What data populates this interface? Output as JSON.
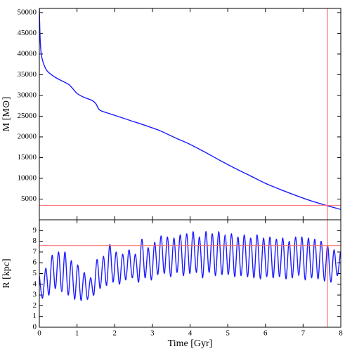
{
  "chart_data": [
    {
      "type": "line",
      "ylabel": "M [M⊙]",
      "x": [
        0,
        0.02,
        0.05,
        0.1,
        0.2,
        0.4,
        0.6,
        0.8,
        1.0,
        1.2,
        1.4,
        1.5,
        1.6,
        1.8,
        2.0,
        2.4,
        2.8,
        3.2,
        3.6,
        4.0,
        4.4,
        4.8,
        5.2,
        5.6,
        6.0,
        6.4,
        6.8,
        7.2,
        7.6,
        8.0
      ],
      "series": [
        {
          "color": "#1a1aff",
          "values": [
            51000,
            44000,
            40000,
            38000,
            36000,
            34500,
            33500,
            32500,
            30500,
            29500,
            28800,
            28000,
            26500,
            25800,
            25200,
            24000,
            22800,
            21500,
            19800,
            18200,
            16300,
            14300,
            12400,
            10600,
            8800,
            7300,
            5900,
            4600,
            3500,
            2500
          ]
        }
      ],
      "xlim": [
        0,
        8
      ],
      "ylim": [
        0,
        51000
      ],
      "yticks": [
        5000,
        10000,
        15000,
        20000,
        25000,
        30000,
        35000,
        40000,
        45000,
        50000
      ],
      "vline": 7.65,
      "hline": 3500,
      "ref_color": "#ff6666"
    },
    {
      "type": "line",
      "ylabel": "R [kpc]",
      "xlabel": "Time [Gyr]",
      "x": [
        0,
        0.085,
        0.17,
        0.255,
        0.34,
        0.425,
        0.51,
        0.595,
        0.68,
        0.765,
        0.85,
        0.935,
        1.02,
        1.105,
        1.19,
        1.275,
        1.36,
        1.445,
        1.53,
        1.615,
        1.7,
        1.785,
        1.87,
        1.955,
        2.04,
        2.125,
        2.21,
        2.295,
        2.38,
        2.465,
        2.55,
        2.635,
        2.72,
        2.805,
        2.89,
        2.975,
        3.06,
        3.145,
        3.23,
        3.315,
        3.4,
        3.485,
        3.57,
        3.655,
        3.74,
        3.825,
        3.91,
        3.995,
        4.08,
        4.165,
        4.25,
        4.335,
        4.42,
        4.505,
        4.59,
        4.675,
        4.76,
        4.845,
        4.93,
        5.015,
        5.1,
        5.185,
        5.27,
        5.355,
        5.44,
        5.525,
        5.61,
        5.695,
        5.78,
        5.865,
        5.95,
        6.035,
        6.12,
        6.205,
        6.29,
        6.375,
        6.46,
        6.545,
        6.63,
        6.715,
        6.8,
        6.885,
        6.97,
        7.055,
        7.14,
        7.225,
        7.31,
        7.395,
        7.48,
        7.565,
        7.65,
        7.735,
        7.82,
        7.905,
        7.99
      ],
      "series": [
        {
          "color": "#1a1aff",
          "values": [
            4.8,
            2.7,
            5.5,
            3.0,
            6.7,
            3.6,
            7.0,
            3.3,
            7.0,
            3.0,
            6.2,
            2.6,
            5.8,
            2.5,
            5.1,
            2.6,
            4.6,
            3.0,
            6.3,
            3.6,
            6.6,
            3.9,
            7.7,
            4.2,
            7.0,
            4.0,
            6.8,
            4.4,
            7.2,
            4.6,
            6.8,
            4.2,
            8.2,
            4.6,
            7.4,
            4.4,
            7.9,
            4.9,
            8.5,
            5.0,
            8.4,
            4.7,
            8.3,
            5.1,
            8.6,
            4.8,
            8.7,
            5.0,
            8.9,
            5.1,
            8.4,
            4.6,
            8.9,
            5.1,
            8.7,
            4.8,
            8.9,
            4.9,
            8.6,
            4.9,
            8.7,
            4.7,
            8.4,
            4.8,
            8.6,
            4.7,
            8.3,
            4.6,
            8.6,
            4.5,
            8.3,
            4.7,
            8.4,
            4.6,
            8.2,
            4.7,
            8.3,
            4.5,
            8.0,
            4.6,
            8.4,
            4.8,
            8.4,
            4.4,
            8.3,
            4.6,
            8.2,
            4.5,
            8.0,
            4.3,
            7.6,
            4.2,
            7.2,
            4.8,
            7.0
          ]
        }
      ],
      "xlim": [
        0,
        8
      ],
      "ylim": [
        0,
        10
      ],
      "xticks": [
        0,
        1,
        2,
        3,
        4,
        5,
        6,
        7,
        8
      ],
      "yticks": [
        0,
        1,
        2,
        3,
        4,
        5,
        6,
        7,
        8,
        9
      ],
      "vline": 7.65,
      "hline": 7.6,
      "ref_color": "#ff6666"
    }
  ]
}
